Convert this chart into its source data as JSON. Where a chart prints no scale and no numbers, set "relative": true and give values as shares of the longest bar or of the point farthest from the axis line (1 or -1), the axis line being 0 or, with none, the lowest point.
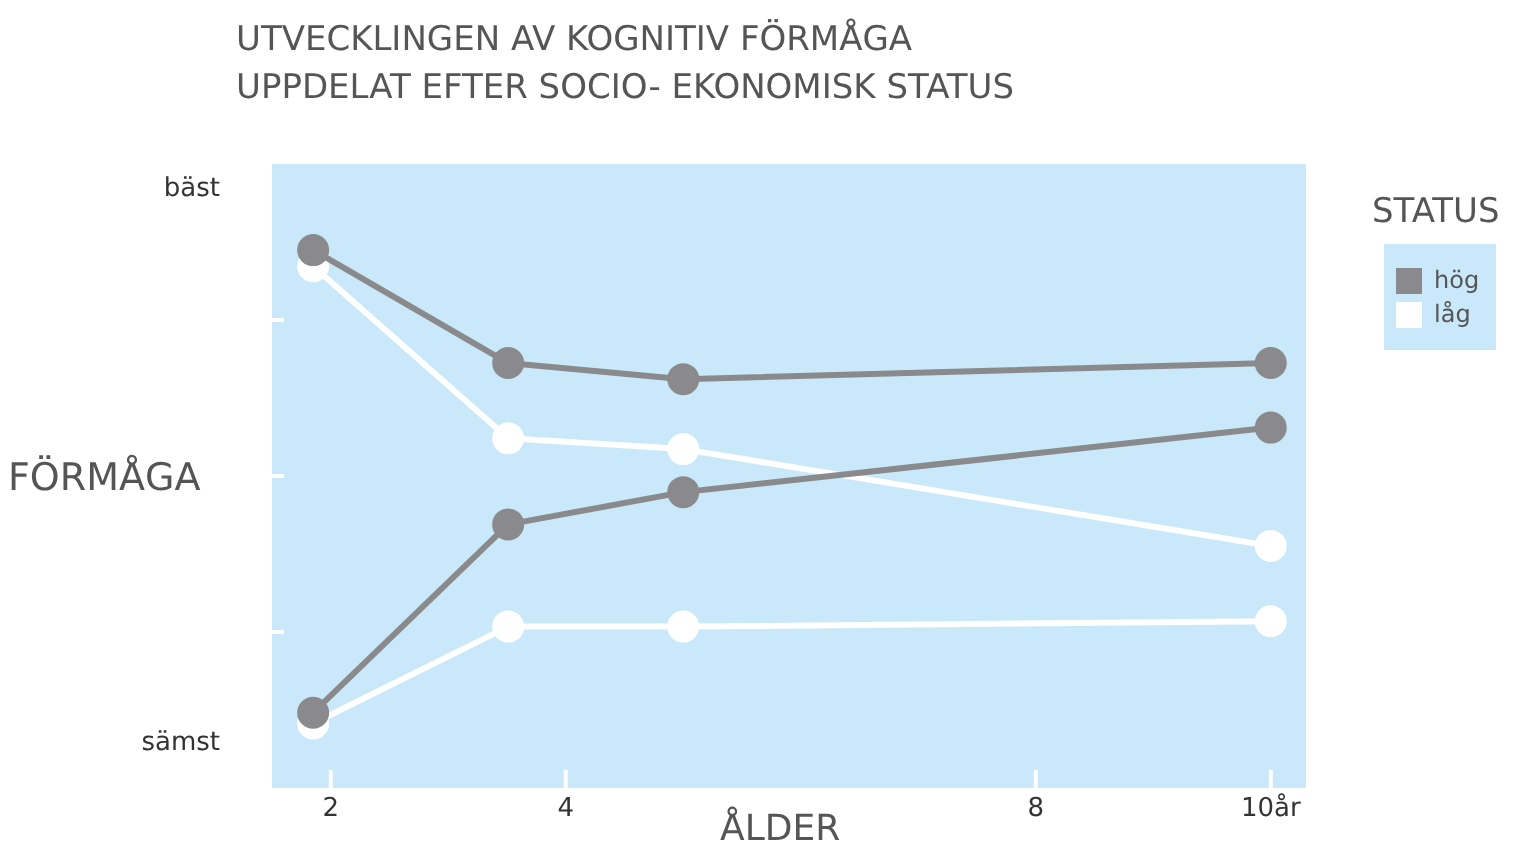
{
  "chart_data": {
    "type": "line",
    "title": "UTVECKLINGEN AV KOGNITIV FÖRMÅGA\nUPPDELAT EFTER SOCIO- EKONOMISK STATUS",
    "xlabel": "ÅLDER",
    "ylabel": "FÖRMÅGA",
    "legend_title": "STATUS",
    "annotations": [
      "bäst",
      "sämst"
    ],
    "relative": true,
    "x": [
      1.85,
      3.51,
      5.0,
      10.0
    ],
    "series": [
      {
        "name": "låg",
        "color": "#ffffff",
        "values": [
          0.97,
          0.65,
          0.63,
          0.45
        ]
      },
      {
        "color": "#ffffff",
        "values": [
          0.12,
          0.3,
          0.3,
          0.31
        ]
      },
      {
        "name": "hög",
        "color": "#8a8a8c",
        "values": [
          1,
          0.79,
          0.76,
          0.79
        ]
      },
      {
        "color": "#8a8a8c",
        "values": [
          0.14,
          0.49,
          0.55,
          0.67
        ]
      }
    ],
    "xlim": [
      1.5,
      10.3
    ],
    "xticks": [
      2,
      4,
      8,
      {
        "value": 10,
        "label": "10år"
      }
    ],
    "grid": false,
    "legend": "top right",
    "marker": "circle",
    "line_style": "solid"
  }
}
